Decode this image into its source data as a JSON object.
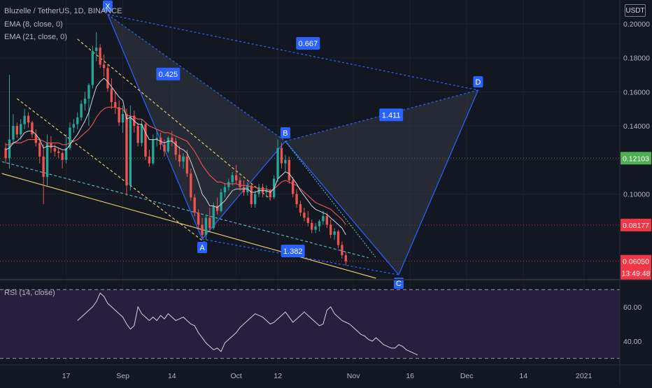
{
  "header": {
    "symbol_title": "Bluzelle / TetherUS, 1D, BINANCE",
    "ema8_label": "EMA (8, close, 0)",
    "ema21_label": "EMA (21, close, 0)",
    "currency_button": "USDT"
  },
  "rsi_panel": {
    "label": "RSI (14, close)",
    "ticks": [
      "60.00",
      "40.00"
    ]
  },
  "colors": {
    "background": "#131722",
    "up": "#26a69a",
    "down": "#ef5350",
    "ema8": "#d1d4dc",
    "ema21": "#ef5350",
    "pattern_line": "#2962ff",
    "pattern_fill": "#363a45",
    "support_line": "#e0c76b",
    "rsi_line": "#d1d4dc",
    "rsi_band": "#2a2040",
    "green_level": "#4caf50",
    "red_level": "#ef5350"
  },
  "price_badges": [
    {
      "value": "0.12103",
      "color": "#4caf50",
      "price": 0.12103
    },
    {
      "value": "0.08177",
      "color": "#f23645",
      "price": 0.08177
    },
    {
      "value": "0.06050",
      "color": "#f23645",
      "price": 0.0605
    },
    {
      "value": "13:49:48",
      "color": "#f23645",
      "price": 0.0535
    }
  ],
  "pattern": {
    "points": [
      {
        "label": "X",
        "day": 27,
        "price": 0.2055
      },
      {
        "label": "A",
        "day": 52,
        "price": 0.0735
      },
      {
        "label": "B",
        "day": 74,
        "price": 0.131
      },
      {
        "label": "C",
        "day": 104,
        "price": 0.0525
      },
      {
        "label": "D",
        "day": 125,
        "price": 0.161
      }
    ],
    "ratios": [
      {
        "value": "0.425",
        "day": 43,
        "price": 0.1705
      },
      {
        "value": "0.667",
        "day": 80,
        "price": 0.1885
      },
      {
        "value": "1.411",
        "day": 102,
        "price": 0.1465
      },
      {
        "value": "1.382",
        "day": 76,
        "price": 0.0665
      }
    ]
  },
  "chart_data": {
    "type": "candlestick",
    "title": "Bluzelle / TetherUS, 1D, BINANCE",
    "x_tick_labels": [
      {
        "label": "17",
        "day": 16
      },
      {
        "label": "Sep",
        "day": 31
      },
      {
        "label": "14",
        "day": 44
      },
      {
        "label": "Oct",
        "day": 61
      },
      {
        "label": "12",
        "day": 72
      },
      {
        "label": "Nov",
        "day": 92
      },
      {
        "label": "16",
        "day": 107
      },
      {
        "label": "Dec",
        "day": 122
      },
      {
        "label": "14",
        "day": 137
      },
      {
        "label": "2021",
        "day": 153
      }
    ],
    "y_ticks": [
      0.2,
      0.18,
      0.16,
      0.14,
      0.12,
      0.1
    ],
    "y_range": [
      0.0505,
      0.2115
    ],
    "x_day_range": [
      -1.5,
      162.5
    ],
    "rsi_range": [
      27,
      75
    ],
    "rsi_levels": [
      70,
      30
    ],
    "rsi_ticks": [
      60,
      40
    ],
    "candles": [
      [
        0.127,
        0.13,
        0.118,
        0.121
      ],
      [
        0.121,
        0.17,
        0.115,
        0.132
      ],
      [
        0.132,
        0.147,
        0.129,
        0.14
      ],
      [
        0.14,
        0.142,
        0.133,
        0.135
      ],
      [
        0.135,
        0.144,
        0.132,
        0.141
      ],
      [
        0.141,
        0.15,
        0.138,
        0.146
      ],
      [
        0.146,
        0.148,
        0.139,
        0.142
      ],
      [
        0.142,
        0.143,
        0.133,
        0.135
      ],
      [
        0.135,
        0.138,
        0.128,
        0.13
      ],
      [
        0.13,
        0.133,
        0.118,
        0.122
      ],
      [
        0.122,
        0.129,
        0.094,
        0.11
      ],
      [
        0.11,
        0.135,
        0.105,
        0.13
      ],
      [
        0.13,
        0.134,
        0.124,
        0.127
      ],
      [
        0.127,
        0.129,
        0.122,
        0.125
      ],
      [
        0.125,
        0.127,
        0.121,
        0.124
      ],
      [
        0.124,
        0.125,
        0.115,
        0.12
      ],
      [
        0.12,
        0.135,
        0.118,
        0.127
      ],
      [
        0.127,
        0.142,
        0.126,
        0.139
      ],
      [
        0.139,
        0.144,
        0.136,
        0.141
      ],
      [
        0.141,
        0.148,
        0.138,
        0.145
      ],
      [
        0.145,
        0.155,
        0.143,
        0.153
      ],
      [
        0.153,
        0.16,
        0.149,
        0.156
      ],
      [
        0.156,
        0.165,
        0.14,
        0.164
      ],
      [
        0.164,
        0.187,
        0.162,
        0.184
      ],
      [
        0.184,
        0.195,
        0.178,
        0.186
      ],
      [
        0.186,
        0.188,
        0.174,
        0.176
      ],
      [
        0.176,
        0.182,
        0.169,
        0.174
      ],
      [
        0.174,
        0.176,
        0.16,
        0.162
      ],
      [
        0.162,
        0.168,
        0.15,
        0.154
      ],
      [
        0.154,
        0.16,
        0.147,
        0.151
      ],
      [
        0.151,
        0.155,
        0.14,
        0.142
      ],
      [
        0.142,
        0.152,
        0.136,
        0.147
      ],
      [
        0.147,
        0.15,
        0.099,
        0.105
      ],
      [
        0.105,
        0.152,
        0.102,
        0.146
      ],
      [
        0.146,
        0.149,
        0.136,
        0.14
      ],
      [
        0.14,
        0.142,
        0.128,
        0.13
      ],
      [
        0.13,
        0.144,
        0.128,
        0.141
      ],
      [
        0.141,
        0.142,
        0.12,
        0.122
      ],
      [
        0.122,
        0.126,
        0.116,
        0.118
      ],
      [
        0.118,
        0.135,
        0.117,
        0.132
      ],
      [
        0.132,
        0.138,
        0.128,
        0.133
      ],
      [
        0.133,
        0.136,
        0.126,
        0.129
      ],
      [
        0.129,
        0.132,
        0.122,
        0.125
      ],
      [
        0.125,
        0.134,
        0.124,
        0.133
      ],
      [
        0.133,
        0.137,
        0.128,
        0.131
      ],
      [
        0.131,
        0.133,
        0.12,
        0.123
      ],
      [
        0.123,
        0.128,
        0.116,
        0.119
      ],
      [
        0.119,
        0.124,
        0.115,
        0.122
      ],
      [
        0.122,
        0.126,
        0.11,
        0.112
      ],
      [
        0.112,
        0.115,
        0.096,
        0.098
      ],
      [
        0.098,
        0.1,
        0.087,
        0.089
      ],
      [
        0.089,
        0.091,
        0.08,
        0.082
      ],
      [
        0.082,
        0.086,
        0.074,
        0.076
      ],
      [
        0.076,
        0.088,
        0.073,
        0.086
      ],
      [
        0.086,
        0.092,
        0.078,
        0.08
      ],
      [
        0.08,
        0.095,
        0.079,
        0.093
      ],
      [
        0.093,
        0.098,
        0.088,
        0.09
      ],
      [
        0.09,
        0.103,
        0.089,
        0.101
      ],
      [
        0.101,
        0.106,
        0.098,
        0.104
      ],
      [
        0.104,
        0.109,
        0.102,
        0.107
      ],
      [
        0.107,
        0.113,
        0.105,
        0.111
      ],
      [
        0.111,
        0.117,
        0.106,
        0.108
      ],
      [
        0.108,
        0.11,
        0.102,
        0.104
      ],
      [
        0.104,
        0.108,
        0.099,
        0.101
      ],
      [
        0.101,
        0.107,
        0.099,
        0.105
      ],
      [
        0.105,
        0.106,
        0.092,
        0.094
      ],
      [
        0.094,
        0.102,
        0.092,
        0.1
      ],
      [
        0.1,
        0.106,
        0.098,
        0.104
      ],
      [
        0.104,
        0.106,
        0.098,
        0.101
      ],
      [
        0.101,
        0.105,
        0.098,
        0.102
      ],
      [
        0.102,
        0.103,
        0.096,
        0.098
      ],
      [
        0.098,
        0.111,
        0.097,
        0.109
      ],
      [
        0.109,
        0.132,
        0.107,
        0.127
      ],
      [
        0.127,
        0.13,
        0.115,
        0.118
      ],
      [
        0.118,
        0.123,
        0.113,
        0.12
      ],
      [
        0.12,
        0.122,
        0.106,
        0.108
      ],
      [
        0.108,
        0.11,
        0.098,
        0.1
      ],
      [
        0.1,
        0.103,
        0.092,
        0.094
      ],
      [
        0.094,
        0.096,
        0.087,
        0.089
      ],
      [
        0.089,
        0.092,
        0.084,
        0.086
      ],
      [
        0.086,
        0.09,
        0.081,
        0.083
      ],
      [
        0.083,
        0.085,
        0.077,
        0.079
      ],
      [
        0.079,
        0.083,
        0.077,
        0.081
      ],
      [
        0.081,
        0.085,
        0.078,
        0.084
      ],
      [
        0.084,
        0.09,
        0.082,
        0.087
      ],
      [
        0.087,
        0.089,
        0.08,
        0.082
      ],
      [
        0.082,
        0.085,
        0.074,
        0.076
      ],
      [
        0.076,
        0.08,
        0.073,
        0.078
      ],
      [
        0.078,
        0.079,
        0.068,
        0.07
      ],
      [
        0.07,
        0.072,
        0.062,
        0.064
      ],
      [
        0.064,
        0.066,
        0.058,
        0.0605
      ]
    ],
    "ema8": [
      0.126,
      0.127,
      0.13,
      0.131,
      0.133,
      0.136,
      0.137,
      0.137,
      0.135,
      0.132,
      0.127,
      0.128,
      0.128,
      0.128,
      0.127,
      0.126,
      0.126,
      0.129,
      0.132,
      0.135,
      0.139,
      0.143,
      0.148,
      0.156,
      0.163,
      0.166,
      0.168,
      0.166,
      0.163,
      0.16,
      0.157,
      0.155,
      0.144,
      0.145,
      0.143,
      0.141,
      0.141,
      0.136,
      0.132,
      0.132,
      0.132,
      0.131,
      0.13,
      0.131,
      0.131,
      0.129,
      0.127,
      0.126,
      0.124,
      0.119,
      0.113,
      0.107,
      0.1,
      0.097,
      0.093,
      0.093,
      0.092,
      0.094,
      0.096,
      0.099,
      0.102,
      0.103,
      0.103,
      0.103,
      0.103,
      0.101,
      0.101,
      0.102,
      0.102,
      0.102,
      0.101,
      0.103,
      0.109,
      0.111,
      0.113,
      0.112,
      0.109,
      0.106,
      0.102,
      0.099,
      0.096,
      0.093,
      0.091,
      0.09,
      0.089,
      0.088,
      0.086,
      0.084,
      0.082,
      0.08,
      0.076
    ],
    "ema21": [
      0.129,
      0.129,
      0.13,
      0.13,
      0.13,
      0.131,
      0.132,
      0.132,
      0.132,
      0.132,
      0.131,
      0.13,
      0.13,
      0.13,
      0.13,
      0.129,
      0.129,
      0.13,
      0.131,
      0.132,
      0.134,
      0.136,
      0.138,
      0.141,
      0.145,
      0.148,
      0.15,
      0.151,
      0.151,
      0.151,
      0.15,
      0.15,
      0.146,
      0.146,
      0.145,
      0.144,
      0.144,
      0.142,
      0.14,
      0.139,
      0.138,
      0.137,
      0.136,
      0.136,
      0.135,
      0.134,
      0.133,
      0.132,
      0.131,
      0.128,
      0.125,
      0.121,
      0.117,
      0.114,
      0.111,
      0.109,
      0.107,
      0.107,
      0.106,
      0.106,
      0.106,
      0.106,
      0.105,
      0.105,
      0.105,
      0.104,
      0.104,
      0.103,
      0.103,
      0.103,
      0.102,
      0.103,
      0.105,
      0.107,
      0.108,
      0.107,
      0.106,
      0.105,
      0.103,
      0.101,
      0.099,
      0.097,
      0.095,
      0.094,
      0.093,
      0.092,
      0.091,
      0.089,
      0.087,
      0.085,
      0.082
    ],
    "rsi": [
      52,
      54,
      56,
      58,
      60,
      63,
      68,
      66,
      62,
      60,
      58,
      56,
      54,
      50,
      47,
      49,
      60,
      56,
      54,
      52,
      54,
      52,
      55,
      53,
      56,
      54,
      52,
      53,
      54,
      52,
      50,
      49,
      45,
      42,
      39,
      37,
      35,
      36,
      34,
      39,
      41,
      43,
      45,
      48,
      50,
      52,
      54,
      56,
      55,
      54,
      52,
      50,
      51,
      53,
      55,
      57,
      54,
      51,
      53,
      55,
      57,
      55,
      53,
      51,
      49,
      50,
      58,
      60,
      56,
      54,
      52,
      51,
      50,
      48,
      46,
      44,
      43,
      41,
      40,
      42,
      40,
      38,
      37,
      36,
      36,
      38,
      37,
      35,
      34,
      33,
      32
    ],
    "rsi_start_day": 19
  }
}
